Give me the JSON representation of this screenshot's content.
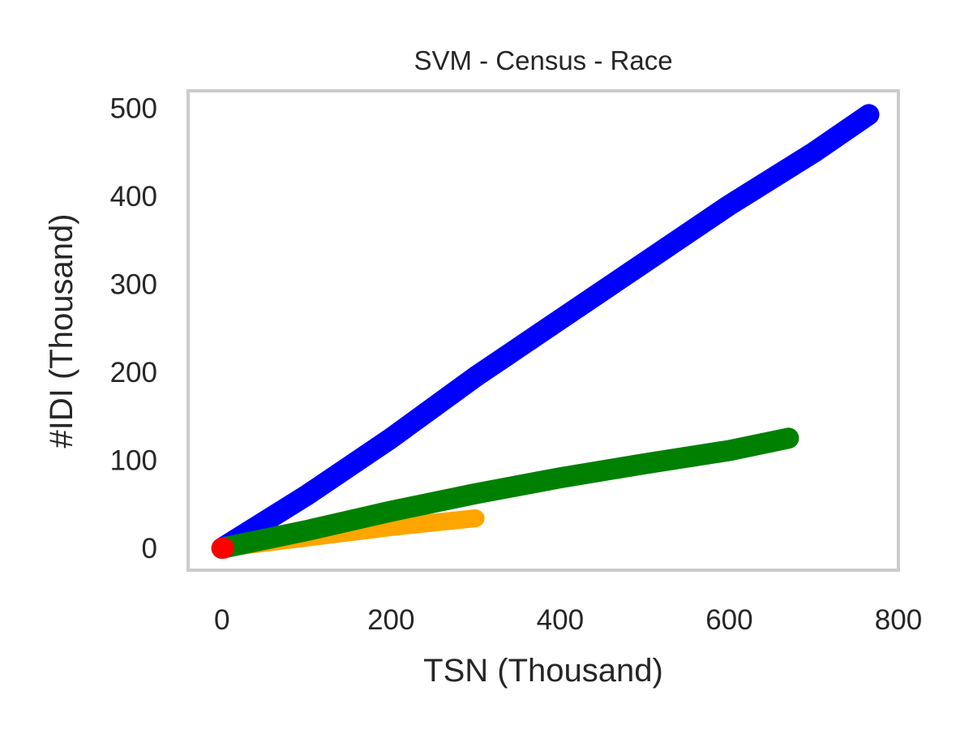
{
  "chart_data": {
    "type": "line",
    "title": "SVM - Census - Race",
    "xlabel": "TSN (Thousand)",
    "ylabel": "#IDI (Thousand)",
    "xlim": [
      -40,
      800
    ],
    "ylim": [
      -25,
      520
    ],
    "xticks": [
      0,
      200,
      400,
      600,
      800
    ],
    "yticks": [
      0,
      100,
      200,
      300,
      400,
      500
    ],
    "grid": false,
    "legend": "none",
    "series": [
      {
        "color": "#0000ff",
        "x": [
          0,
          100,
          200,
          300,
          400,
          500,
          600,
          700,
          765
        ],
        "y": [
          0,
          60,
          125,
          195,
          260,
          325,
          390,
          450,
          493
        ]
      },
      {
        "color": "#ffa500",
        "x": [
          0,
          50,
          100,
          150,
          200,
          250,
          300
        ],
        "y": [
          0,
          6,
          12,
          18,
          24,
          29,
          34
        ]
      },
      {
        "color": "#008000",
        "x": [
          0,
          100,
          200,
          300,
          400,
          500,
          600,
          670
        ],
        "y": [
          0,
          20,
          42,
          62,
          80,
          96,
          111,
          125
        ]
      },
      {
        "color": "#ff0000",
        "x": [
          0,
          2
        ],
        "y": [
          0,
          0
        ]
      }
    ]
  }
}
